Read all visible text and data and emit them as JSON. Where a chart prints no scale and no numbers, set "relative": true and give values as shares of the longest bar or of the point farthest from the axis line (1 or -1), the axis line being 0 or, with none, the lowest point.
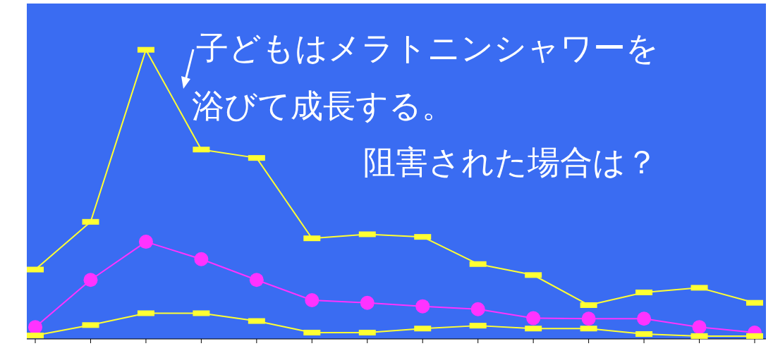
{
  "chart_data": {
    "type": "line",
    "relative": true,
    "categories": [
      null,
      null,
      null,
      null,
      null,
      null,
      null,
      null,
      null,
      null,
      null,
      null,
      null,
      null
    ],
    "series": [
      {
        "color": "#ffff33",
        "marker": "square",
        "values": [
          0.24,
          0.405,
          1,
          0.655,
          0.626,
          0.348,
          0.362,
          0.353,
          0.259,
          0.221,
          0.117,
          0.161,
          0.177,
          0.125
        ]
      },
      {
        "color": "#ff33ff",
        "marker": "circle",
        "values": [
          0.041,
          0.204,
          0.336,
          0.276,
          0.204,
          0.134,
          0.125,
          0.113,
          0.103,
          0.072,
          0.07,
          0.07,
          0.041,
          0.022
        ]
      },
      {
        "color": "#ffff33",
        "marker": "square",
        "values": [
          0.012,
          0.048,
          0.089,
          0.089,
          0.062,
          0.022,
          0.022,
          0.036,
          0.046,
          0.036,
          0.036,
          0.017,
          0.01,
          0.01
        ]
      }
    ],
    "annotations": [
      "子どもはメラトニンシャワーを",
      "浴びて成長する。",
      "阻害された場合は？"
    ],
    "grid": false,
    "legend": false
  }
}
